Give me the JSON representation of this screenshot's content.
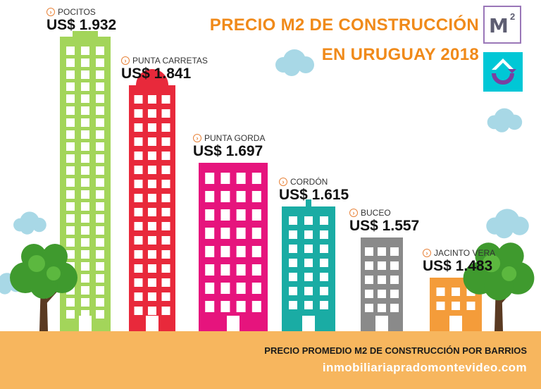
{
  "header": {
    "title_line1": "PRECIO M2 DE CONSTRUCCIÓN",
    "title_line2": "EN URUGUAY 2018"
  },
  "logos": {
    "m2_text": "M",
    "m2_superscript": "2"
  },
  "footer": {
    "subtitle": "PRECIO PROMEDIO M2 DE CONSTRUCCIÓN POR BARRIOS",
    "website": "inmobiliariapradomontevideo.com"
  },
  "chart_data": {
    "type": "bar",
    "title": "PRECIO M2 DE CONSTRUCCIÓN EN URUGUAY 2018",
    "subtitle": "PRECIO PROMEDIO M2 DE CONSTRUCCIÓN POR BARRIOS",
    "categories": [
      "POCITOS",
      "PUNTA CARRETAS",
      "PUNTA GORDA",
      "CORDÓN",
      "BUCEO",
      "JACINTO VERA"
    ],
    "values": [
      1932,
      1841,
      1697,
      1615,
      1557,
      1483
    ],
    "value_labels": [
      "US$ 1.932",
      "US$ 1.841",
      "US$ 1.697",
      "US$ 1.615",
      "US$ 1.557",
      "US$ 1.483"
    ],
    "currency": "US$",
    "colors": [
      "#a3d55a",
      "#e8293b",
      "#e6147d",
      "#1aaca4",
      "#8a8a8a",
      "#f49c3a"
    ],
    "grid": false,
    "legend": "none"
  }
}
